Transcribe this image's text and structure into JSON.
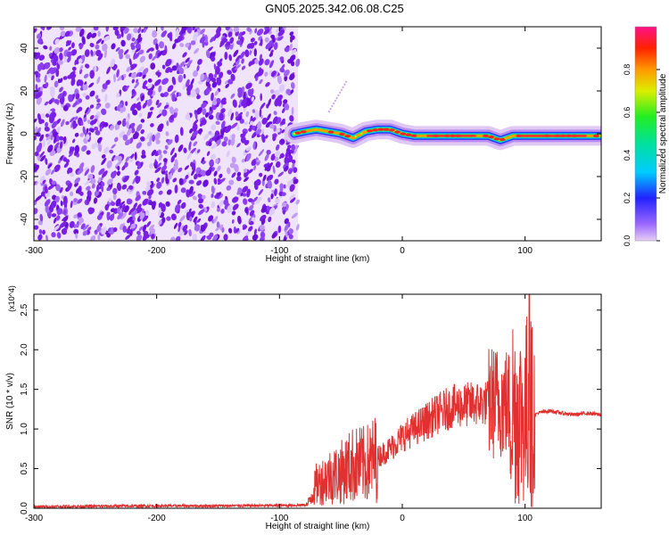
{
  "title": "GN05.2025.342.06.08.C25",
  "chart_data": [
    {
      "type": "heatmap",
      "xlabel": "Height of straight line (km)",
      "ylabel": "Frequency (Hz)",
      "xlim": [
        -300,
        162
      ],
      "ylim": [
        -50,
        50
      ],
      "x_ticks": [
        -300,
        -200,
        -100,
        0,
        100
      ],
      "y_ticks": [
        -40,
        -20,
        0,
        20,
        40
      ],
      "colorbar": {
        "label": "Normalized spectral amplitude",
        "range": [
          0,
          1
        ],
        "ticks": [
          "0.0",
          "0.2",
          "0.4",
          "0.6",
          "0.8"
        ]
      },
      "noise_region": {
        "x_from": -300,
        "x_to": -85
      },
      "ridge": {
        "x": [
          -88,
          -80,
          -70,
          -60,
          -50,
          -45,
          -40,
          -30,
          -20,
          -10,
          0,
          10,
          20,
          40,
          60,
          70,
          80,
          85,
          90,
          100,
          120,
          140,
          162
        ],
        "frequency": [
          0,
          1,
          2,
          1,
          0,
          -1,
          -2,
          1,
          2,
          2,
          0,
          -1,
          -1,
          -1,
          -1,
          -1,
          -3,
          -2,
          -1,
          -1,
          -1,
          -1,
          -1
        ]
      },
      "streak": {
        "x": [
          -60,
          -45
        ],
        "frequency": [
          10,
          25
        ]
      }
    },
    {
      "type": "line",
      "xlabel": "Height of straight line (km)",
      "ylabel": "SNR (10 * v/v)",
      "y_multiplier": "(x10^4)",
      "xlim": [
        -300,
        162
      ],
      "ylim": [
        0,
        27000
      ],
      "x_ticks": [
        -300,
        -200,
        -100,
        0,
        100
      ],
      "y_ticks": [
        "0.0",
        "0.5",
        "1.0",
        "1.5",
        "2.0",
        "2.5"
      ],
      "series": [
        {
          "color": "#e03030",
          "x": [
            -300,
            -250,
            -200,
            -150,
            -100,
            -80,
            -77,
            -70,
            -60,
            -50,
            -40,
            -30,
            -20,
            -10,
            0,
            10,
            20,
            30,
            40,
            50,
            60,
            70,
            80,
            90,
            95,
            100,
            103,
            106,
            110,
            120,
            130,
            140,
            150,
            162
          ],
          "values": [
            200,
            250,
            300,
            300,
            350,
            400,
            500,
            3000,
            4000,
            4500,
            5500,
            5500,
            6500,
            7500,
            9000,
            10000,
            11000,
            12000,
            12800,
            13000,
            13200,
            13300,
            13500,
            13000,
            12000,
            11500,
            14000,
            11500,
            12000,
            12300,
            12000,
            11800,
            12000,
            11800
          ]
        }
      ]
    }
  ]
}
